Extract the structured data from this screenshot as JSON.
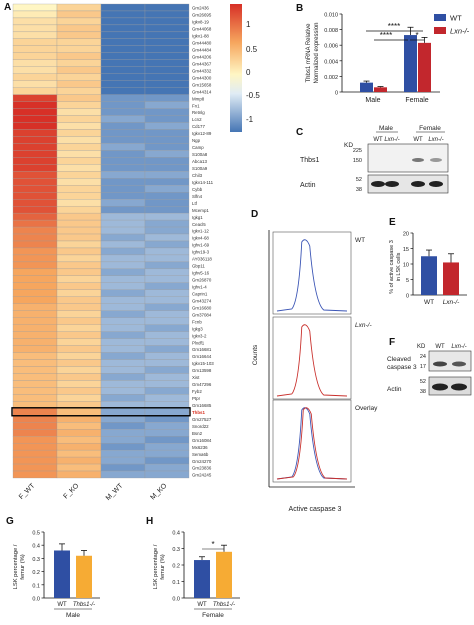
{
  "panels": {
    "A": "A",
    "B": "B",
    "C": "C",
    "D": "D",
    "E": "E",
    "F": "F",
    "G": "G",
    "H": "H"
  },
  "heatmap": {
    "columns": [
      "F_WT",
      "F_KO",
      "M_WT",
      "M_KO"
    ],
    "genes": [
      "Gm2436",
      "Gm26695",
      "Igkv8-19",
      "Gm44068",
      "Igkv1-88",
      "Gm44480",
      "Gm44484",
      "Gm44206",
      "Gm44367",
      "Gm44332",
      "Gm44300",
      "Gm15658",
      "Gm44314",
      "Mmp8",
      "Fn1",
      "Retnlg",
      "Lcn2",
      "Cd177",
      "Igkv12-89",
      "Ngp",
      "Camp",
      "S100a8",
      "Abca13",
      "S100a9",
      "Chil3",
      "Igkv14-111",
      "Cybb",
      "Slfn4",
      "Ltf",
      "Mcemp1",
      "Igkg1",
      "Ceacl5",
      "Igkv1-12",
      "Igkv4-68",
      "Ighv1-69",
      "Ighv19-3",
      "AY036118",
      "Gbp11",
      "Ighv5-16",
      "Gm26870",
      "Ighv1-4",
      "Caprin1",
      "Gm43274",
      "Gm16680",
      "Gm37084",
      "Fcnb",
      "Igkg3",
      "Igkv3-2",
      "Plxdf1",
      "Gm16681",
      "Gm16644",
      "Igkv15-103",
      "Gm13598",
      "Xist",
      "Gm47296",
      "Fyb2",
      "Ptpr",
      "Gm16685",
      "Thbs1",
      "Gm27527",
      "Snord22",
      "Bsn2",
      "Gm16084",
      "Mx6236",
      "Sema6b",
      "Gm24270",
      "Gm23836",
      "Gm24245"
    ],
    "highlight_gene": "Thbs1",
    "highlight_color": "#d7301f",
    "values": [
      [
        0.2,
        0.5,
        -1.3,
        -1.3
      ],
      [
        0.3,
        0.6,
        -1.3,
        -1.2
      ],
      [
        0.4,
        0.5,
        -1.3,
        -1.2
      ],
      [
        0.4,
        0.6,
        -1.3,
        -1.2
      ],
      [
        0.4,
        0.6,
        -1.2,
        -1.2
      ],
      [
        0.5,
        0.5,
        -1.2,
        -1.2
      ],
      [
        0.5,
        0.5,
        -1.2,
        -1.1
      ],
      [
        0.5,
        0.6,
        -1.2,
        -1.2
      ],
      [
        0.4,
        0.5,
        -1.2,
        -1.1
      ],
      [
        0.4,
        0.6,
        -1.2,
        -1.2
      ],
      [
        0.5,
        0.5,
        -1.2,
        -1.1
      ],
      [
        0.4,
        0.6,
        -1.2,
        -1.2
      ],
      [
        0.5,
        0.5,
        -1.2,
        -1.1
      ],
      [
        1.5,
        0.6,
        -0.8,
        -0.8
      ],
      [
        1.6,
        0.5,
        -0.8,
        -0.7
      ],
      [
        1.6,
        0.4,
        -0.8,
        -0.8
      ],
      [
        1.6,
        0.5,
        -0.7,
        -0.8
      ],
      [
        1.6,
        0.4,
        -0.8,
        -0.7
      ],
      [
        1.5,
        0.5,
        -0.8,
        -0.8
      ],
      [
        1.5,
        0.4,
        -0.8,
        -0.8
      ],
      [
        1.5,
        0.5,
        -0.7,
        -0.8
      ],
      [
        1.5,
        0.4,
        -0.8,
        -0.7
      ],
      [
        1.5,
        0.5,
        -0.8,
        -0.8
      ],
      [
        1.5,
        0.4,
        -0.8,
        -0.8
      ],
      [
        1.4,
        0.5,
        -0.7,
        -0.7
      ],
      [
        1.4,
        0.4,
        -0.8,
        -0.8
      ],
      [
        1.4,
        0.5,
        -0.8,
        -0.7
      ],
      [
        1.4,
        0.5,
        -0.8,
        -0.8
      ],
      [
        1.4,
        0.4,
        -0.7,
        -0.8
      ],
      [
        1.4,
        0.5,
        -0.8,
        -0.8
      ],
      [
        1.3,
        0.6,
        -0.6,
        -0.6
      ],
      [
        1.2,
        0.6,
        -0.6,
        -0.7
      ],
      [
        1.1,
        0.6,
        -0.6,
        -0.7
      ],
      [
        1.1,
        0.6,
        -0.7,
        -0.6
      ],
      [
        1.1,
        0.5,
        -0.6,
        -0.7
      ],
      [
        1.0,
        0.6,
        -0.7,
        -0.6
      ],
      [
        1.0,
        0.5,
        -0.6,
        -0.6
      ],
      [
        1.0,
        0.6,
        -0.6,
        -0.7
      ],
      [
        0.9,
        0.6,
        -0.7,
        -0.6
      ],
      [
        0.9,
        0.5,
        -0.6,
        -0.6
      ],
      [
        0.9,
        0.6,
        -0.6,
        -0.7
      ],
      [
        0.9,
        0.5,
        -0.7,
        -0.6
      ],
      [
        0.9,
        0.6,
        -0.6,
        -0.6
      ],
      [
        0.8,
        0.6,
        -0.6,
        -0.7
      ],
      [
        0.8,
        0.5,
        -0.7,
        -0.6
      ],
      [
        0.8,
        0.6,
        -0.6,
        -0.6
      ],
      [
        0.8,
        0.5,
        -0.6,
        -0.7
      ],
      [
        0.8,
        0.6,
        -0.7,
        -0.6
      ],
      [
        0.8,
        0.5,
        -0.6,
        -0.6
      ],
      [
        0.8,
        0.6,
        -0.6,
        -0.7
      ],
      [
        0.7,
        0.5,
        -0.7,
        -0.6
      ],
      [
        0.7,
        0.6,
        -0.6,
        -0.6
      ],
      [
        0.7,
        0.5,
        -0.6,
        -0.7
      ],
      [
        0.7,
        0.6,
        -0.7,
        -0.6
      ],
      [
        0.7,
        0.5,
        -0.6,
        -0.6
      ],
      [
        0.7,
        0.6,
        -0.6,
        -0.7
      ],
      [
        0.7,
        0.5,
        -0.7,
        -0.6
      ],
      [
        0.7,
        0.6,
        -0.6,
        -0.6
      ],
      [
        1.1,
        0.7,
        -0.7,
        -0.7
      ],
      [
        1.1,
        0.8,
        -0.7,
        -0.8
      ],
      [
        1.1,
        0.7,
        -0.8,
        -0.7
      ],
      [
        1.1,
        0.8,
        -0.7,
        -0.7
      ],
      [
        1.0,
        0.7,
        -0.7,
        -0.8
      ],
      [
        1.0,
        0.8,
        -0.8,
        -0.7
      ],
      [
        1.0,
        0.7,
        -0.7,
        -0.7
      ],
      [
        1.0,
        0.8,
        -0.7,
        -0.8
      ],
      [
        1.0,
        0.7,
        -0.8,
        -0.7
      ],
      [
        1.0,
        0.8,
        -0.7,
        -0.7
      ]
    ],
    "scale_ticks": [
      "1",
      "0.5",
      "0",
      "-0.5",
      "-1"
    ]
  },
  "chart_data": [
    {
      "type": "bar",
      "panel": "B",
      "ylabel": "Thbs1 mRNA Relative Normalized expression",
      "ylim": [
        0,
        0.01
      ],
      "yticks": [
        "0.010",
        "0.008",
        "0.006",
        "0.004",
        "0.002",
        "0"
      ],
      "categories": [
        "Male",
        "Female"
      ],
      "series": [
        {
          "name": "WT",
          "color": "#2f4fa3",
          "values": [
            0.0012,
            0.0073
          ],
          "errors": [
            0.0002,
            0.001
          ]
        },
        {
          "name": "Lxn-/-",
          "color": "#c2272d",
          "values": [
            0.0006,
            0.0063
          ],
          "errors": [
            0.0001,
            0.0007
          ]
        }
      ],
      "significance": [
        "****",
        "****",
        "*"
      ]
    },
    {
      "type": "bar",
      "panel": "E",
      "ylabel": "% of active caspase 3 in LSK cells",
      "ylim": [
        0,
        20
      ],
      "yticks": [
        "20",
        "15",
        "10",
        "5",
        "0"
      ],
      "categories": [
        "WT",
        "Lxn-/-"
      ],
      "values": [
        12.5,
        10.5
      ],
      "errors": [
        2.0,
        2.8
      ],
      "colors": [
        "#2f4fa3",
        "#c2272d"
      ]
    },
    {
      "type": "bar",
      "panel": "G",
      "ylabel": "LSK percentage / femur (%)",
      "ylim": [
        0,
        0.5
      ],
      "yticks": [
        "0.5",
        "0.4",
        "0.3",
        "0.2",
        "0.1",
        "0.0"
      ],
      "categories": [
        "WT",
        "Thbs1-/-"
      ],
      "values": [
        0.36,
        0.32
      ],
      "errors": [
        0.05,
        0.04
      ],
      "colors": [
        "#2f4fa3",
        "#f6ab34"
      ],
      "group_label": "Male"
    },
    {
      "type": "bar",
      "panel": "H",
      "ylabel": "LSK percentage / femur (%)",
      "ylim": [
        0,
        0.4
      ],
      "yticks": [
        "0.4",
        "0.3",
        "0.2",
        "0.1",
        "0.0"
      ],
      "categories": [
        "WT",
        "Thbs1-/-"
      ],
      "values": [
        0.23,
        0.28
      ],
      "errors": [
        0.02,
        0.04
      ],
      "colors": [
        "#2f4fa3",
        "#f6ab34"
      ],
      "group_label": "Female",
      "significance": "*"
    }
  ],
  "blot_c": {
    "kd_label": "KD",
    "groups": [
      "Male",
      "Female"
    ],
    "lanes": [
      "WT",
      "Lxn-/-",
      "WT",
      "Lxn-/-"
    ],
    "markers": [
      "225",
      "150",
      "52",
      "38"
    ],
    "bands": [
      "Thbs1",
      "Actin"
    ]
  },
  "flow_d": {
    "ylabel": "Counts",
    "xlabel": "Active caspase 3",
    "panels": [
      "WT",
      "Lxn-/-",
      "Overlay"
    ]
  },
  "blot_f": {
    "kd_label": "KD",
    "lanes": [
      "WT",
      "Lxn-/-"
    ],
    "markers": [
      "24",
      "17",
      "52",
      "38"
    ],
    "bands": [
      "Cleaved caspase 3",
      "Actin"
    ]
  }
}
